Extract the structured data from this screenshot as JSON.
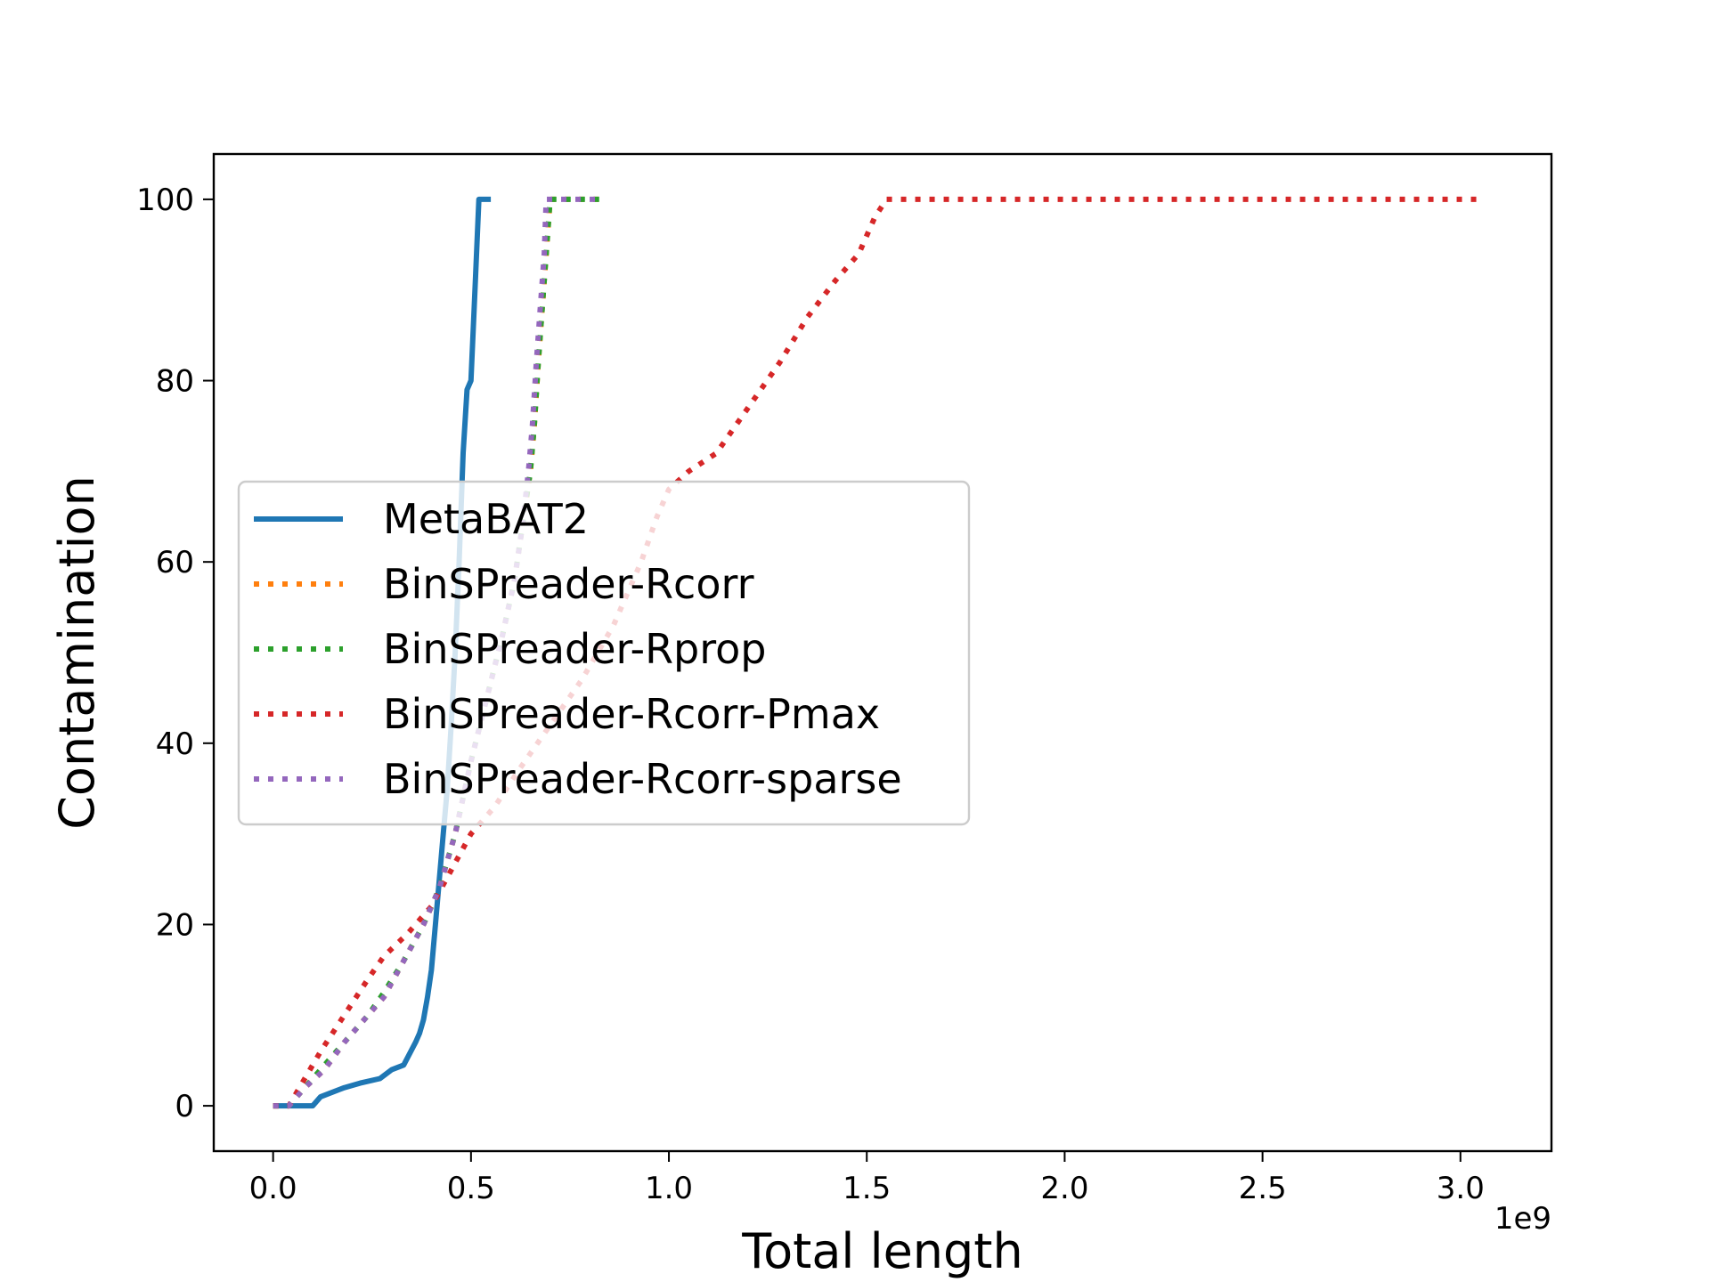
{
  "chart_data": {
    "type": "line",
    "xlabel": "Total length",
    "ylabel": "Contamination",
    "x_offset_label": "1e9",
    "x_scale_note": "x values in units of 1e9",
    "xlim": [
      -0.15,
      3.23
    ],
    "ylim": [
      -5,
      105
    ],
    "xticks": [
      0.0,
      0.5,
      1.0,
      1.5,
      2.0,
      2.5,
      3.0
    ],
    "xtick_labels": [
      "0.0",
      "0.5",
      "1.0",
      "1.5",
      "2.0",
      "2.5",
      "3.0"
    ],
    "yticks": [
      0,
      20,
      40,
      60,
      80,
      100
    ],
    "ytick_labels": [
      "0",
      "20",
      "40",
      "60",
      "80",
      "100"
    ],
    "grid": false,
    "legend_position": "center-left",
    "series": [
      {
        "name": "MetaBAT2",
        "color": "#1f77b4",
        "style": "solid",
        "x": [
          0.0,
          0.1,
          0.12,
          0.18,
          0.22,
          0.27,
          0.3,
          0.33,
          0.36,
          0.37,
          0.38,
          0.39,
          0.4,
          0.41,
          0.42,
          0.43,
          0.44,
          0.45,
          0.46,
          0.47,
          0.48,
          0.49,
          0.5,
          0.51,
          0.52,
          0.55
        ],
        "y": [
          0,
          0,
          1,
          2,
          2.5,
          3,
          4,
          4.5,
          7,
          8,
          9.5,
          12,
          15,
          20,
          25,
          30,
          35,
          42,
          50,
          60,
          72,
          79,
          80,
          90,
          100,
          100
        ]
      },
      {
        "name": "BinSPreader-Rcorr",
        "color": "#ff7f0e",
        "style": "dotted",
        "x": [
          0.0,
          0.04,
          0.08,
          0.13,
          0.18,
          0.24,
          0.28,
          0.33,
          0.38,
          0.42,
          0.46,
          0.5,
          0.54,
          0.58,
          0.61,
          0.63,
          0.65,
          0.66,
          0.67,
          0.68,
          0.69,
          0.7,
          0.72,
          0.83
        ],
        "y": [
          0,
          0,
          2,
          4,
          7,
          10,
          12,
          16,
          20,
          24,
          30,
          38,
          45,
          52,
          58,
          64,
          70,
          75,
          82,
          88,
          94,
          100,
          100,
          100
        ]
      },
      {
        "name": "BinSPreader-Rprop",
        "color": "#2ca02c",
        "style": "dotted",
        "x": [
          0.0,
          0.04,
          0.08,
          0.13,
          0.18,
          0.24,
          0.28,
          0.33,
          0.38,
          0.42,
          0.46,
          0.5,
          0.54,
          0.58,
          0.61,
          0.63,
          0.65,
          0.66,
          0.67,
          0.68,
          0.69,
          0.7,
          0.72,
          0.83
        ],
        "y": [
          0,
          0,
          2,
          4.5,
          7,
          10,
          12.5,
          16,
          20,
          24,
          30,
          38,
          45,
          52,
          58,
          64,
          70,
          75,
          82,
          88,
          94,
          100,
          100,
          100
        ]
      },
      {
        "name": "BinSPreader-Rcorr-Pmax",
        "color": "#d62728",
        "style": "dotted",
        "x": [
          0.0,
          0.04,
          0.08,
          0.12,
          0.18,
          0.24,
          0.28,
          0.34,
          0.4,
          0.45,
          0.5,
          0.56,
          0.62,
          0.7,
          0.78,
          0.86,
          0.93,
          0.97,
          1.0,
          1.05,
          1.12,
          1.2,
          1.28,
          1.35,
          1.42,
          1.48,
          1.52,
          1.55,
          1.6,
          3.05
        ],
        "y": [
          0,
          0,
          3,
          6,
          10,
          14,
          16.5,
          19,
          22,
          26,
          30,
          33,
          37,
          42,
          47,
          53,
          60,
          65,
          68,
          70,
          72,
          77,
          82,
          87,
          91,
          94,
          98,
          100,
          100,
          100
        ]
      },
      {
        "name": "BinSPreader-Rcorr-sparse",
        "color": "#9467bd",
        "style": "dotted",
        "x": [
          0.0,
          0.04,
          0.08,
          0.13,
          0.18,
          0.24,
          0.28,
          0.33,
          0.38,
          0.42,
          0.46,
          0.5,
          0.54,
          0.58,
          0.61,
          0.63,
          0.645,
          0.655,
          0.665,
          0.675,
          0.685,
          0.69,
          0.7,
          0.72,
          0.83
        ],
        "y": [
          0,
          0,
          2,
          4,
          7,
          10,
          12,
          16,
          20,
          24,
          30,
          38,
          45,
          52,
          58,
          64,
          70,
          75,
          82,
          88,
          94,
          100,
          100,
          100,
          100
        ]
      }
    ]
  }
}
